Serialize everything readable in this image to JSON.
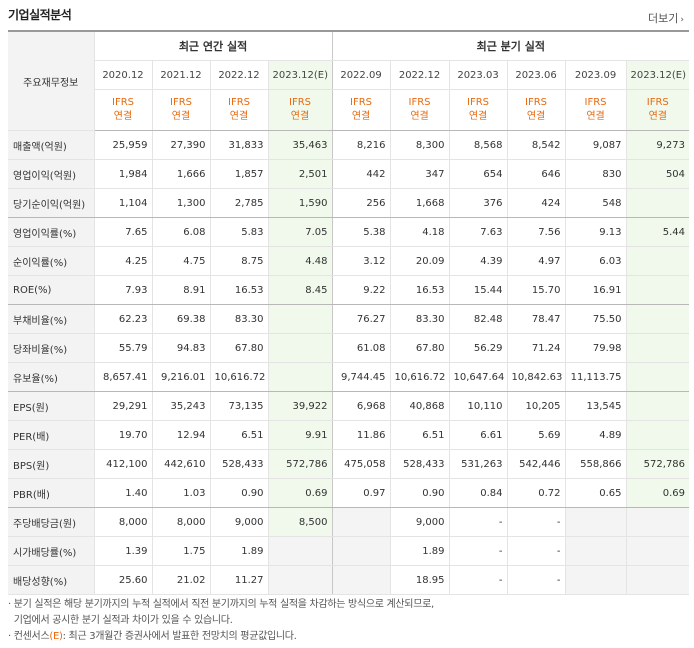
{
  "title": "기업실적분석",
  "more_label": "더보기",
  "header": {
    "corner": "주요재무정보",
    "annual_group": "최근 연간 실적",
    "quarter_group": "최근 분기 실적",
    "annual_dates": [
      "2020.12",
      "2021.12",
      "2022.12",
      "2023.12(E)"
    ],
    "quarter_dates": [
      "2022.09",
      "2022.12",
      "2023.03",
      "2023.06",
      "2023.09",
      "2023.12(E)"
    ],
    "ifrs_line1": "IFRS",
    "ifrs_line2": "연결"
  },
  "rows": [
    {
      "label": "매출액(억원)",
      "values": [
        "25,959",
        "27,390",
        "31,833",
        "35,463",
        "8,216",
        "8,300",
        "8,568",
        "8,542",
        "9,087",
        "9,273"
      ]
    },
    {
      "label": "영업이익(억원)",
      "values": [
        "1,984",
        "1,666",
        "1,857",
        "2,501",
        "442",
        "347",
        "654",
        "646",
        "830",
        "504"
      ]
    },
    {
      "label": "당기순이익(억원)",
      "values": [
        "1,104",
        "1,300",
        "2,785",
        "1,590",
        "256",
        "1,668",
        "376",
        "424",
        "548",
        ""
      ]
    },
    {
      "label": "영업이익률(%)",
      "values": [
        "7.65",
        "6.08",
        "5.83",
        "7.05",
        "5.38",
        "4.18",
        "7.63",
        "7.56",
        "9.13",
        "5.44"
      ]
    },
    {
      "label": "순이익률(%)",
      "values": [
        "4.25",
        "4.75",
        "8.75",
        "4.48",
        "3.12",
        "20.09",
        "4.39",
        "4.97",
        "6.03",
        ""
      ]
    },
    {
      "label": "ROE(%)",
      "values": [
        "7.93",
        "8.91",
        "16.53",
        "8.45",
        "9.22",
        "16.53",
        "15.44",
        "15.70",
        "16.91",
        ""
      ]
    },
    {
      "label": "부채비율(%)",
      "values": [
        "62.23",
        "69.38",
        "83.30",
        "",
        "76.27",
        "83.30",
        "82.48",
        "78.47",
        "75.50",
        ""
      ]
    },
    {
      "label": "당좌비율(%)",
      "values": [
        "55.79",
        "94.83",
        "67.80",
        "",
        "61.08",
        "67.80",
        "56.29",
        "71.24",
        "79.98",
        ""
      ]
    },
    {
      "label": "유보율(%)",
      "values": [
        "8,657.41",
        "9,216.01",
        "10,616.72",
        "",
        "9,744.45",
        "10,616.72",
        "10,647.64",
        "10,842.63",
        "11,113.75",
        ""
      ]
    },
    {
      "label": "EPS(원)",
      "values": [
        "29,291",
        "35,243",
        "73,135",
        "39,922",
        "6,968",
        "40,868",
        "10,110",
        "10,205",
        "13,545",
        ""
      ]
    },
    {
      "label": "PER(배)",
      "values": [
        "19.70",
        "12.94",
        "6.51",
        "9.91",
        "11.86",
        "6.51",
        "6.61",
        "5.69",
        "4.89",
        ""
      ]
    },
    {
      "label": "BPS(원)",
      "values": [
        "412,100",
        "442,610",
        "528,433",
        "572,786",
        "475,058",
        "528,433",
        "531,263",
        "542,446",
        "558,866",
        "572,786"
      ]
    },
    {
      "label": "PBR(배)",
      "values": [
        "1.40",
        "1.03",
        "0.90",
        "0.69",
        "0.97",
        "0.90",
        "0.84",
        "0.72",
        "0.65",
        "0.69"
      ]
    },
    {
      "label": "주당배당금(원)",
      "values": [
        "8,000",
        "8,000",
        "9,000",
        "8,500",
        "",
        "9,000",
        "-",
        "-",
        "",
        ""
      ]
    },
    {
      "label": "시가배당률(%)",
      "values": [
        "1.39",
        "1.75",
        "1.89",
        "",
        "",
        "1.89",
        "-",
        "-",
        "",
        ""
      ]
    },
    {
      "label": "배당성향(%)",
      "values": [
        "25.60",
        "21.02",
        "11.27",
        "",
        "",
        "18.95",
        "-",
        "-",
        "",
        ""
      ]
    }
  ],
  "footnotes": {
    "line1": "· 분기 실적은 해당 분기까지의 누적 실적에서 직전 분기까지의 누적 실적을 차감하는 방식으로 계산되므로,",
    "line2": "  기업에서 공시한 분기 실적과 차이가 있을 수 있습니다.",
    "line3_prefix": "· 컨센서스",
    "line3_em": "(E)",
    "line3_suffix": ": 최근 3개월간 증권사에서 발표한 전망치의 평균값입니다."
  },
  "colors": {
    "ifrs_orange": "#e86a10",
    "estimate_bg": "#f0f9ec",
    "label_bg": "#f3f3f3"
  }
}
